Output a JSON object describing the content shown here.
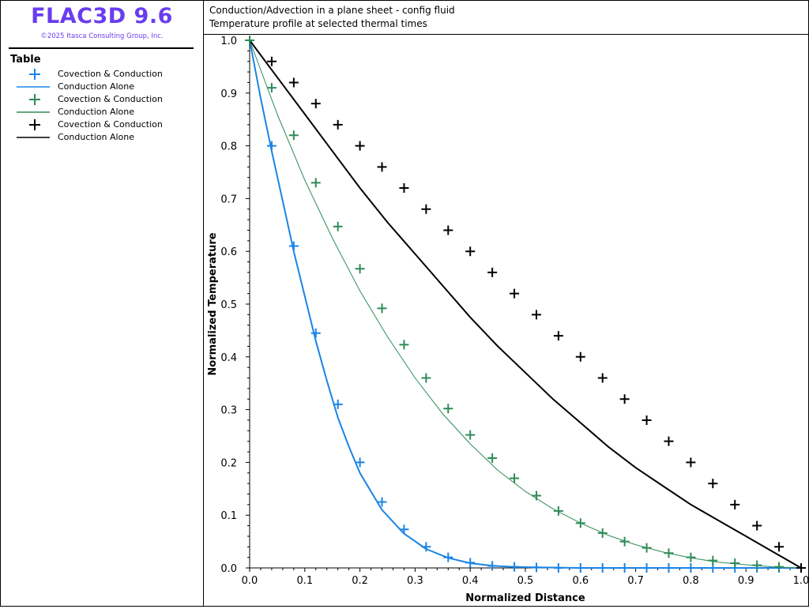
{
  "app": {
    "title": "FLAC3D 9.6",
    "copyright": "©2025 Itasca Consulting Group, Inc."
  },
  "header": {
    "line1": "Conduction/Advection in a plane sheet - config fluid",
    "line2": "Temperature profile at selected thermal times"
  },
  "legend": {
    "title": "Table",
    "items": [
      {
        "label": "Covection & Conduction",
        "kind": "plus",
        "color": "#1a84e6"
      },
      {
        "label": "Conduction Alone",
        "kind": "line",
        "color": "#1a84e6"
      },
      {
        "label": "Covection & Conduction",
        "kind": "plus",
        "color": "#2e8b57"
      },
      {
        "label": "Conduction Alone",
        "kind": "line",
        "color": "#2e8b57"
      },
      {
        "label": "Covection & Conduction",
        "kind": "plus",
        "color": "#000000"
      },
      {
        "label": "Conduction Alone",
        "kind": "line",
        "color": "#000000"
      }
    ]
  },
  "chart_data": {
    "type": "scatter",
    "xlabel": "Normalized Distance",
    "ylabel": "Normalized Temperature",
    "xlim": [
      0,
      1
    ],
    "ylim": [
      0,
      1
    ],
    "xticks": [
      "0.0",
      "0.1",
      "0.2",
      "0.3",
      "0.4",
      "0.5",
      "0.6",
      "0.7",
      "0.8",
      "0.9",
      "1.0"
    ],
    "yticks": [
      "0.0",
      "0.1",
      "0.2",
      "0.3",
      "0.4",
      "0.5",
      "0.6",
      "0.7",
      "0.8",
      "0.9",
      "1.0"
    ],
    "grid": false,
    "series": [
      {
        "kind": "plus",
        "color": "#1a84e6",
        "x": [
          0.0,
          0.04,
          0.08,
          0.12,
          0.16,
          0.2,
          0.24,
          0.28,
          0.32,
          0.36,
          0.4,
          0.44,
          0.48,
          0.52,
          0.56,
          0.6,
          0.64,
          0.68,
          0.72,
          0.76,
          0.8,
          0.84,
          0.88,
          0.92,
          0.96,
          1.0
        ],
        "y": [
          1.0,
          0.8,
          0.61,
          0.445,
          0.31,
          0.2,
          0.125,
          0.073,
          0.04,
          0.02,
          0.01,
          0.004,
          0.002,
          0.001,
          0.0,
          0.0,
          0.0,
          0.0,
          0.0,
          0.0,
          0.0,
          0.0,
          0.0,
          0.0,
          0.0,
          0.0
        ]
      },
      {
        "kind": "line",
        "color": "#1a84e6",
        "x": [
          0.0,
          0.02,
          0.04,
          0.06,
          0.08,
          0.1,
          0.12,
          0.14,
          0.16,
          0.18,
          0.2,
          0.24,
          0.28,
          0.32,
          0.36,
          0.4,
          0.44,
          0.48,
          0.52,
          0.6,
          0.7,
          0.8,
          0.9,
          1.0
        ],
        "y": [
          1.0,
          0.89,
          0.79,
          0.695,
          0.6,
          0.515,
          0.43,
          0.355,
          0.285,
          0.23,
          0.18,
          0.11,
          0.065,
          0.036,
          0.019,
          0.009,
          0.004,
          0.002,
          0.001,
          0.0,
          0.0,
          0.0,
          0.0,
          0.0
        ]
      },
      {
        "kind": "plus",
        "color": "#2e8b57",
        "x": [
          0.0,
          0.04,
          0.08,
          0.12,
          0.16,
          0.2,
          0.24,
          0.28,
          0.32,
          0.36,
          0.4,
          0.44,
          0.48,
          0.52,
          0.56,
          0.6,
          0.64,
          0.68,
          0.72,
          0.76,
          0.8,
          0.84,
          0.88,
          0.92,
          0.96,
          1.0
        ],
        "y": [
          1.0,
          0.91,
          0.82,
          0.73,
          0.647,
          0.567,
          0.492,
          0.423,
          0.36,
          0.302,
          0.252,
          0.208,
          0.17,
          0.137,
          0.108,
          0.085,
          0.066,
          0.05,
          0.038,
          0.028,
          0.02,
          0.014,
          0.009,
          0.005,
          0.002,
          0.0
        ]
      },
      {
        "kind": "line",
        "color": "#2e8b57",
        "x": [
          0.0,
          0.05,
          0.1,
          0.15,
          0.2,
          0.25,
          0.3,
          0.35,
          0.4,
          0.45,
          0.5,
          0.55,
          0.6,
          0.65,
          0.7,
          0.75,
          0.8,
          0.85,
          0.9,
          0.95,
          1.0
        ],
        "y": [
          1.0,
          0.86,
          0.735,
          0.625,
          0.525,
          0.438,
          0.36,
          0.292,
          0.235,
          0.185,
          0.145,
          0.112,
          0.085,
          0.062,
          0.044,
          0.03,
          0.019,
          0.011,
          0.006,
          0.002,
          0.0
        ]
      },
      {
        "kind": "plus",
        "color": "#000000",
        "x": [
          0.04,
          0.08,
          0.12,
          0.16,
          0.2,
          0.24,
          0.28,
          0.32,
          0.36,
          0.4,
          0.44,
          0.48,
          0.52,
          0.56,
          0.6,
          0.64,
          0.68,
          0.72,
          0.76,
          0.8,
          0.84,
          0.88,
          0.92,
          0.96,
          1.0
        ],
        "y": [
          0.96,
          0.92,
          0.88,
          0.84,
          0.8,
          0.76,
          0.72,
          0.68,
          0.64,
          0.6,
          0.56,
          0.52,
          0.48,
          0.44,
          0.4,
          0.36,
          0.32,
          0.28,
          0.24,
          0.2,
          0.16,
          0.12,
          0.08,
          0.04,
          0.0
        ]
      },
      {
        "kind": "line",
        "color": "#000000",
        "x": [
          0.0,
          0.05,
          0.1,
          0.15,
          0.2,
          0.25,
          0.3,
          0.35,
          0.4,
          0.45,
          0.5,
          0.55,
          0.6,
          0.65,
          0.7,
          0.75,
          0.8,
          0.85,
          0.9,
          0.95,
          1.0
        ],
        "y": [
          1.0,
          0.93,
          0.86,
          0.79,
          0.72,
          0.655,
          0.595,
          0.535,
          0.475,
          0.42,
          0.37,
          0.32,
          0.275,
          0.23,
          0.19,
          0.155,
          0.12,
          0.09,
          0.06,
          0.03,
          0.0
        ]
      }
    ]
  }
}
